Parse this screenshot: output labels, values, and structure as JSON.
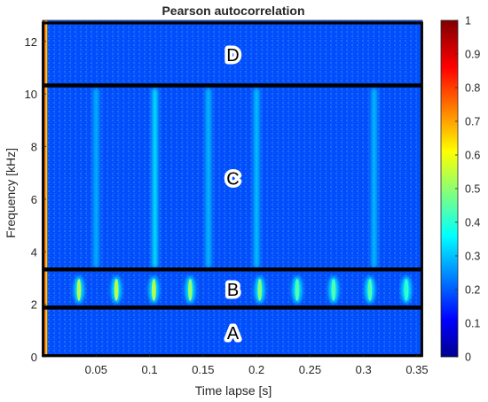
{
  "chart_data": {
    "type": "heatmap",
    "title": "Pearson autocorrelation",
    "xlabel": "Time lapse [s]",
    "ylabel": "Frequency [kHz]",
    "xlim": [
      0,
      0.355
    ],
    "ylim": [
      0,
      12.8
    ],
    "x_ticks": [
      0.05,
      0.1,
      0.15,
      0.2,
      0.25,
      0.3,
      0.35
    ],
    "x_tick_labels": [
      "0.05",
      "0.1",
      "0.15",
      "0.2",
      "0.25",
      "0.3",
      "0.35"
    ],
    "y_ticks": [
      0,
      2,
      4,
      6,
      8,
      10,
      12
    ],
    "y_tick_labels": [
      "0",
      "2",
      "4",
      "6",
      "8",
      "10",
      "12"
    ],
    "colorbar": {
      "range": [
        0,
        1
      ],
      "ticks": [
        0,
        0.1,
        0.2,
        0.3,
        0.4,
        0.5,
        0.6,
        0.7,
        0.8,
        0.9,
        1
      ],
      "tick_labels": [
        "0",
        "0.1",
        "0.2",
        "0.3",
        "0.4",
        "0.5",
        "0.6",
        "0.7",
        "0.8",
        "0.9",
        "1"
      ],
      "colormap": "jet"
    },
    "background_value": 0.2,
    "lag_zero_value": 1.0,
    "bands": [
      {
        "label": "A",
        "freq_range": [
          0.05,
          1.85
        ]
      },
      {
        "label": "B",
        "freq_range": [
          1.9,
          3.3
        ]
      },
      {
        "label": "C",
        "freq_range": [
          3.35,
          10.3
        ]
      },
      {
        "label": "D",
        "freq_range": [
          10.35,
          12.7
        ]
      }
    ],
    "band_b_peaks": {
      "freq_range": [
        2.1,
        3.0
      ],
      "lags": [
        0.034,
        0.069,
        0.104,
        0.138,
        0.203,
        0.238,
        0.272,
        0.306,
        0.34
      ],
      "values": [
        0.55,
        0.55,
        0.55,
        0.52,
        0.5,
        0.45,
        0.45,
        0.45,
        0.42
      ]
    },
    "band_c_stripes": {
      "freq_range": [
        3.4,
        10.2
      ],
      "lags": [
        0.05,
        0.105,
        0.155,
        0.2,
        0.31
      ],
      "values": [
        0.32,
        0.38,
        0.33,
        0.34,
        0.33
      ]
    }
  }
}
